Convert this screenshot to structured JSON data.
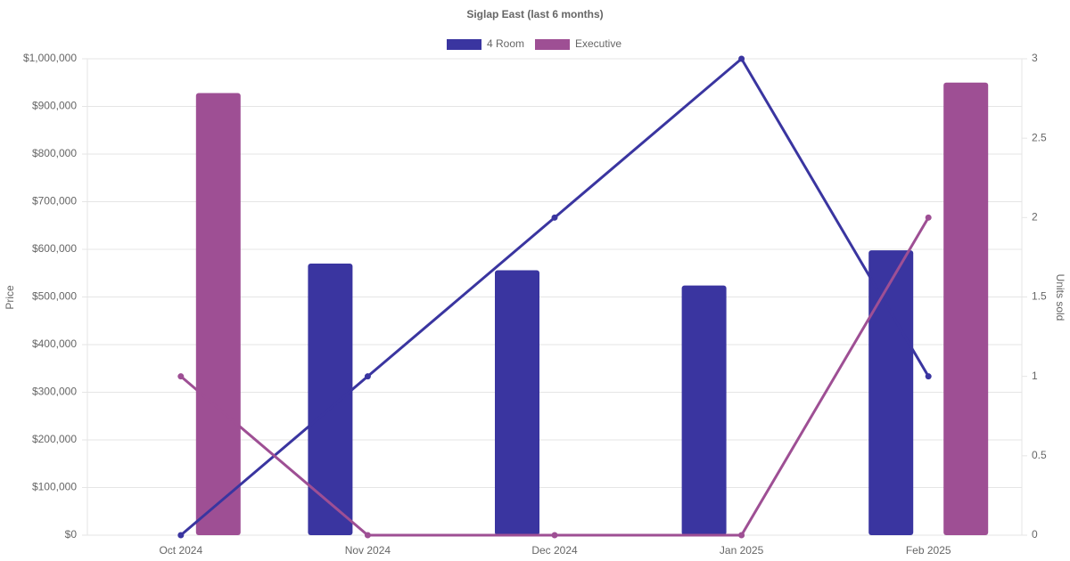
{
  "chart_data": {
    "type": "combo",
    "title": "Siglap East (last 6 months)",
    "categories": [
      "Oct 2024",
      "Nov 2024",
      "Dec 2024",
      "Jan 2025",
      "Feb 2025"
    ],
    "series": [
      {
        "name": "4 Room",
        "color": "#3a35a0",
        "values": [
          null,
          570000,
          556000,
          524000,
          598000
        ],
        "y2_values": [
          0,
          1,
          2,
          3,
          1
        ]
      },
      {
        "name": "Executive",
        "color": "#9e4f94",
        "values": [
          928000,
          null,
          null,
          null,
          950000
        ],
        "y2_values": [
          1,
          0,
          0,
          0,
          2
        ]
      }
    ],
    "y_label": "Price",
    "y2_label": "Units sold",
    "ylim": [
      0,
      1000000
    ],
    "yticks": [
      {
        "value": 0,
        "label": "$0"
      },
      {
        "value": 100000,
        "label": "$100,000"
      },
      {
        "value": 200000,
        "label": "$200,000"
      },
      {
        "value": 300000,
        "label": "$300,000"
      },
      {
        "value": 400000,
        "label": "$400,000"
      },
      {
        "value": 500000,
        "label": "$500,000"
      },
      {
        "value": 600000,
        "label": "$600,000"
      },
      {
        "value": 700000,
        "label": "$700,000"
      },
      {
        "value": 800000,
        "label": "$800,000"
      },
      {
        "value": 900000,
        "label": "$900,000"
      },
      {
        "value": 1000000,
        "label": "$1,000,000"
      }
    ],
    "y2lim": [
      0,
      3
    ],
    "y2ticks": [
      0,
      0.5,
      1,
      1.5,
      2,
      2.5,
      3
    ],
    "grid": true,
    "legend": "top"
  }
}
